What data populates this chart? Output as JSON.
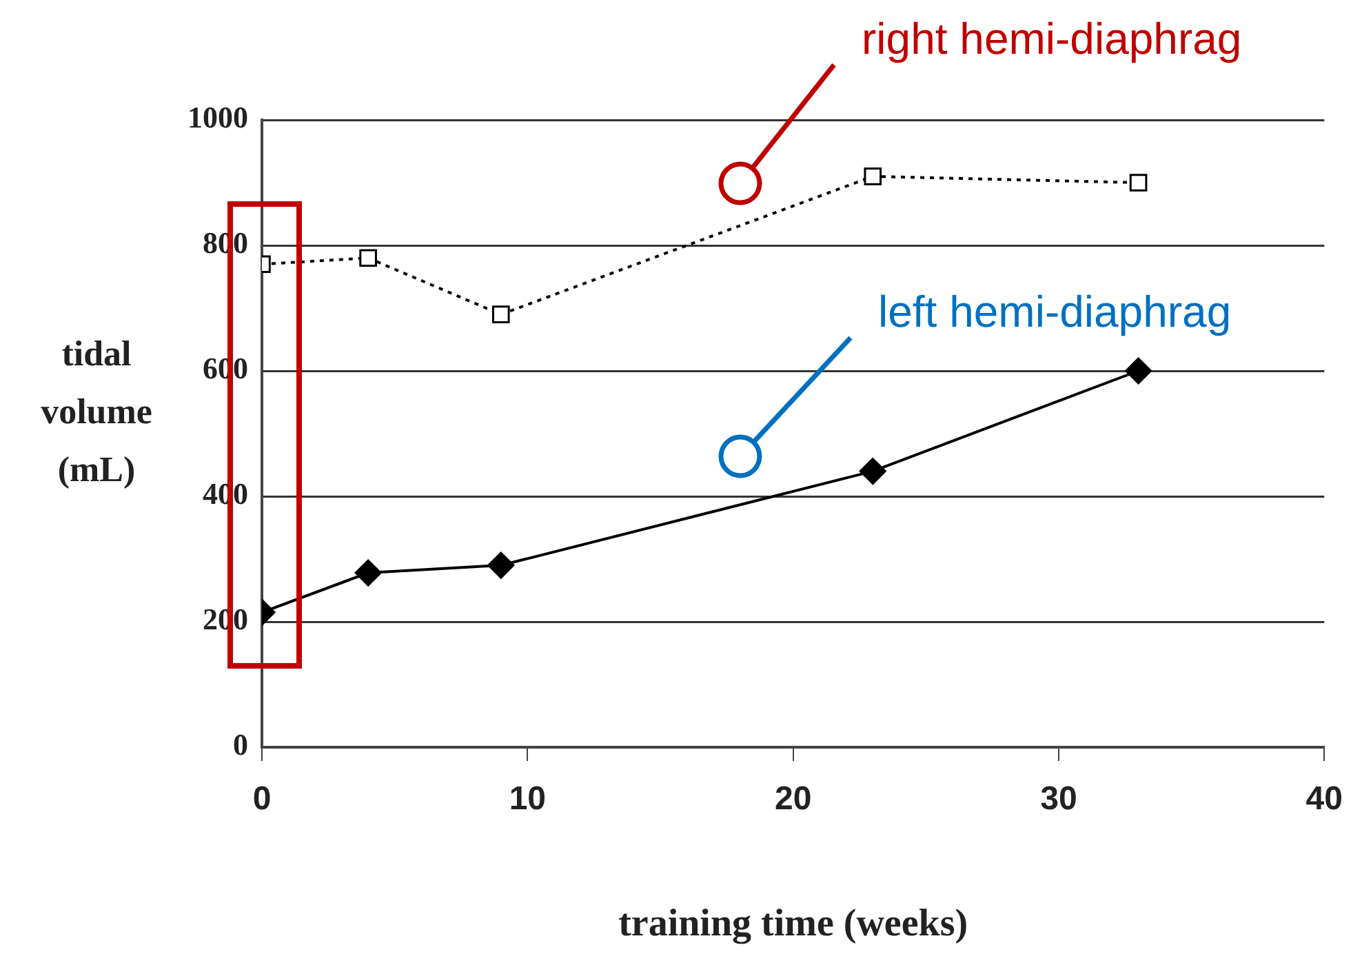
{
  "chart_data": {
    "type": "line",
    "xlabel": "training time (weeks)",
    "ylabel": "tidal volume (mL)",
    "xlim": [
      0,
      40
    ],
    "xticks": [
      0,
      10,
      20,
      30,
      40
    ],
    "ylim": [
      0,
      1000
    ],
    "yticks": [
      0,
      200,
      400,
      600,
      800,
      1000
    ],
    "grid": "y",
    "legend": false,
    "annotations": [
      "right hemi-diaphrag",
      "left hemi-diaphrag"
    ],
    "series": [
      {
        "color": "#000000",
        "marker": "square",
        "line_style": "dotted",
        "x": [
          0,
          4,
          9,
          23,
          33
        ],
        "values": [
          770,
          780,
          690,
          910,
          900
        ]
      },
      {
        "color": "#000000",
        "marker": "diamond",
        "line_style": "solid",
        "x": [
          0,
          4,
          9,
          23,
          33
        ],
        "values": [
          215,
          278,
          290,
          440,
          600
        ]
      }
    ]
  }
}
